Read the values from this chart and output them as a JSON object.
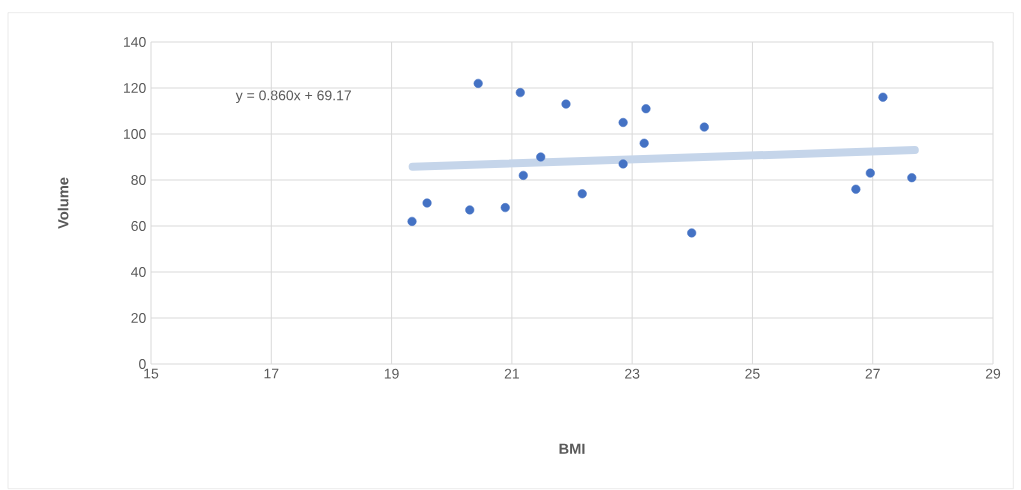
{
  "chart_data": {
    "type": "scatter",
    "xlabel": "BMI",
    "ylabel": "Volume",
    "xlim": [
      15,
      29
    ],
    "xticks": [
      15,
      17,
      19,
      21,
      23,
      25,
      27,
      29
    ],
    "ylim": [
      0,
      140
    ],
    "yticks": [
      0,
      20,
      40,
      60,
      80,
      100,
      120,
      140
    ],
    "grid": true,
    "annotations": [
      "y = 0.860x + 69.17"
    ],
    "series": [
      {
        "marker": "circle",
        "color": "#4472c4",
        "x": [
          19.34,
          19.59,
          20.3,
          20.44,
          20.89,
          21.14,
          21.19,
          21.48,
          21.9,
          22.17,
          22.85,
          22.85,
          23.2,
          23.23,
          23.99,
          24.2,
          26.72,
          26.96,
          27.17,
          27.65
        ],
        "values": [
          62,
          70,
          67,
          122,
          68,
          118,
          82,
          90,
          113,
          74,
          105,
          87,
          96,
          111,
          57,
          103,
          76,
          83,
          116,
          81
        ]
      },
      {
        "type": "line",
        "marker": "none",
        "color": "#c5d5ea",
        "x": [
          19.35,
          27.7
        ],
        "values": [
          85.8,
          93.0
        ]
      }
    ]
  }
}
